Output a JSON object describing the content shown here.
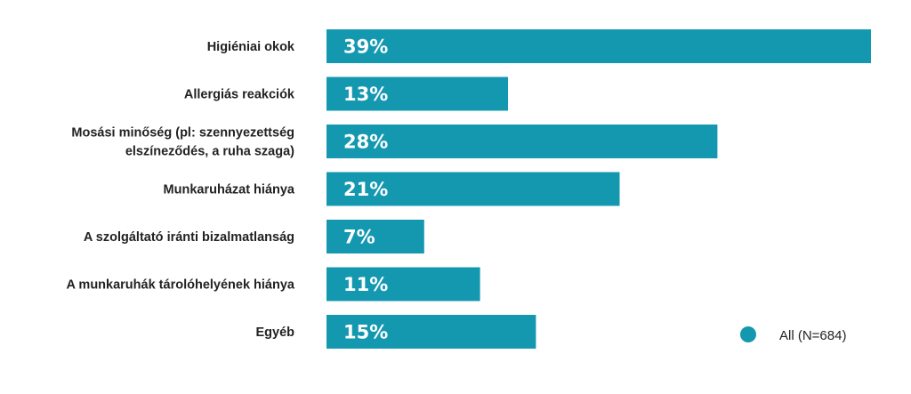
{
  "chart_data": {
    "type": "bar",
    "orientation": "horizontal",
    "categories": [
      [
        "Higiéniai okok"
      ],
      [
        "Allergiás reakciók"
      ],
      [
        "Mosási minőség  (pl: szennyezettség",
        "elszíneződés, a ruha szaga)"
      ],
      [
        "Munkaruházat hiánya"
      ],
      [
        "A szolgáltató iránti bizalmatlanság"
      ],
      [
        "A munkaruhák tárolóhelyének hiánya"
      ],
      [
        "Egyéb"
      ]
    ],
    "series": [
      {
        "name": "All (N=684)",
        "color": "#1498b0",
        "values": [
          39,
          13,
          28,
          21,
          7,
          11,
          15
        ],
        "value_labels": [
          "39%",
          "13%",
          "28%",
          "21%",
          "7%",
          "11%",
          "15%"
        ]
      }
    ],
    "xlim": [
      0,
      39
    ],
    "grid": false,
    "legend": "bottom-right"
  }
}
